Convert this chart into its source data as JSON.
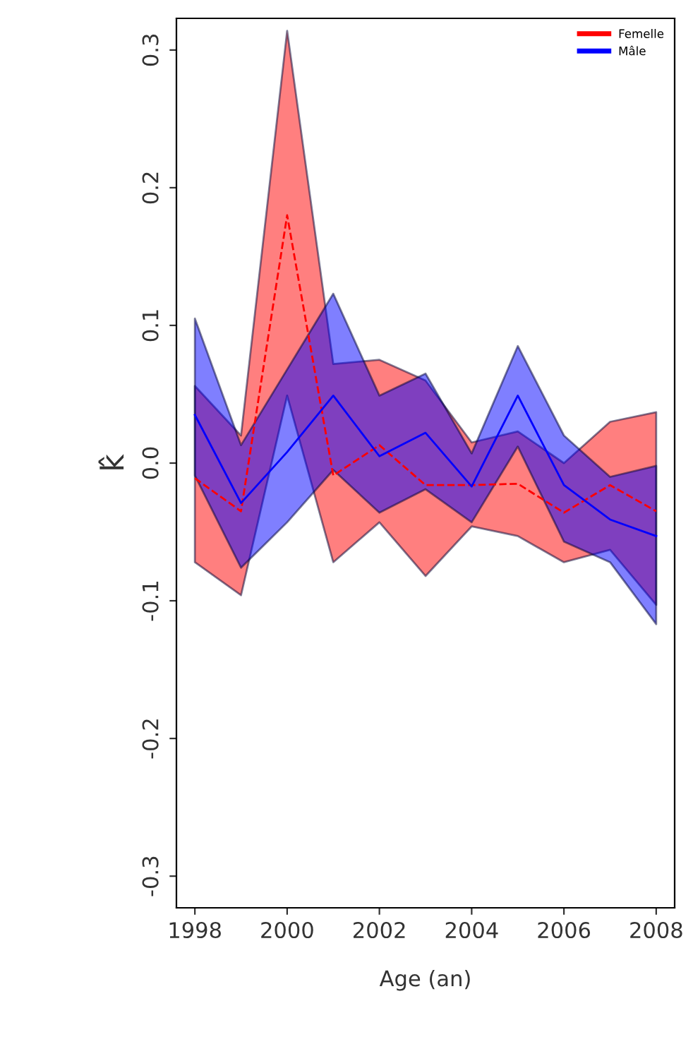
{
  "chart_data": {
    "type": "line",
    "xlabel": "Age (an)",
    "ylabel": "k̂",
    "x": [
      1998,
      1999,
      2000,
      2001,
      2002,
      2003,
      2004,
      2005,
      2006,
      2007,
      2008
    ],
    "series": [
      {
        "name": "Femelle",
        "color": "#ff0000",
        "line_style": "dashed",
        "values": [
          -0.011,
          -0.035,
          0.18,
          -0.009,
          0.013,
          -0.016,
          -0.016,
          -0.015,
          -0.036,
          -0.016,
          -0.035
        ],
        "lower": [
          -0.072,
          -0.096,
          0.049,
          -0.072,
          -0.043,
          -0.082,
          -0.046,
          -0.053,
          -0.072,
          -0.063,
          -0.103
        ],
        "upper": [
          0.056,
          0.02,
          0.314,
          0.072,
          0.075,
          0.06,
          0.015,
          0.023,
          0.0,
          0.03,
          0.037
        ]
      },
      {
        "name": "Mâle",
        "color": "#0000ff",
        "line_style": "solid",
        "values": [
          0.035,
          -0.029,
          0.008,
          0.049,
          0.005,
          0.022,
          -0.017,
          0.049,
          -0.016,
          -0.041,
          -0.053
        ],
        "lower": [
          -0.009,
          -0.076,
          -0.043,
          -0.005,
          -0.036,
          -0.019,
          -0.043,
          0.012,
          -0.057,
          -0.072,
          -0.117
        ],
        "upper": [
          0.105,
          0.013,
          0.068,
          0.123,
          0.049,
          0.065,
          0.007,
          0.085,
          0.02,
          -0.01,
          -0.002
        ]
      }
    ],
    "xlim": [
      1997.6,
      2008.4
    ],
    "xticks": [
      1998,
      2000,
      2002,
      2004,
      2006,
      2008
    ],
    "ylim": [
      -0.323,
      0.323
    ],
    "yticks": [
      {
        "value": -0.3,
        "label": "-0.3"
      },
      {
        "value": -0.2,
        "label": "-0.2"
      },
      {
        "value": -0.1,
        "label": "-0.1"
      },
      {
        "value": 0,
        "label": "0.0"
      },
      {
        "value": 0.1,
        "label": "0.1"
      },
      {
        "value": 0.2,
        "label": "0.2"
      },
      {
        "value": 0.3,
        "label": "0.3"
      }
    ],
    "legend": "top right",
    "grid": false
  }
}
